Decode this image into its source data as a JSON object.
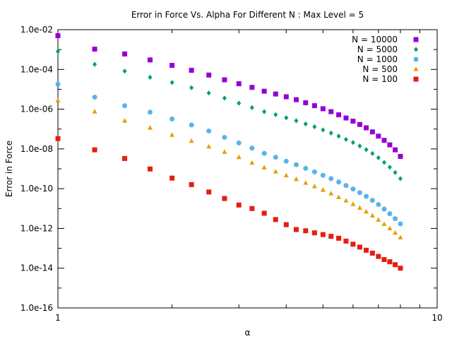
{
  "chart_data": {
    "type": "scatter",
    "title": "Error in Force Vs. Alpha For Different N : Max Level = 5",
    "xlabel": "α",
    "ylabel": "Error in Force",
    "xscale": "log",
    "yscale": "log",
    "xlim": [
      1,
      10
    ],
    "ylim": [
      1e-16,
      0.01
    ],
    "x_ticks": [
      {
        "value": 1,
        "label": "1"
      },
      {
        "value": 10,
        "label": "10"
      }
    ],
    "y_ticks": [
      {
        "value": 1e-16,
        "label": "1.0e-16"
      },
      {
        "value": 1e-14,
        "label": "1.0e-14"
      },
      {
        "value": 1e-12,
        "label": "1.0e-12"
      },
      {
        "value": 1e-10,
        "label": "1.0e-10"
      },
      {
        "value": 1e-08,
        "label": "1.0e-08"
      },
      {
        "value": 1e-06,
        "label": "1.0e-06"
      },
      {
        "value": 0.0001,
        "label": "1.0e-04"
      },
      {
        "value": 0.01,
        "label": "1.0e-02"
      }
    ],
    "legend_position": "top-right",
    "x": [
      1.0,
      1.25,
      1.5,
      1.75,
      2.0,
      2.25,
      2.5,
      2.75,
      3.0,
      3.25,
      3.5,
      3.75,
      4.0,
      4.25,
      4.5,
      4.75,
      5.0,
      5.25,
      5.5,
      5.75,
      6.0,
      6.25,
      6.5,
      6.75,
      7.0,
      7.25,
      7.5,
      7.75,
      8.0
    ],
    "series": [
      {
        "name": "N = 10000",
        "color": "#9400d3",
        "marker": "square",
        "values": [
          0.005,
          0.00105,
          0.0006,
          0.0003,
          0.00016,
          9e-05,
          5.2e-05,
          3e-05,
          1.9e-05,
          1.25e-05,
          8e-06,
          5.8e-06,
          4.2e-06,
          3e-06,
          2.1e-06,
          1.5e-06,
          1.05e-06,
          7.5e-07,
          5.2e-07,
          3.6e-07,
          2.5e-07,
          1.7e-07,
          1.15e-07,
          7.2e-08,
          4.4e-08,
          2.7e-08,
          1.6e-08,
          9e-09,
          4.2e-09
        ]
      },
      {
        "name": "N = 5000",
        "color": "#009e73",
        "marker": "diamond",
        "values": [
          0.0008,
          0.00018,
          8.2e-05,
          4e-05,
          2.2e-05,
          1.2e-05,
          6.5e-06,
          3.6e-06,
          2e-06,
          1.2e-06,
          7.5e-07,
          5.3e-07,
          3.7e-07,
          2.6e-07,
          1.8e-07,
          1.3e-07,
          9e-08,
          6.3e-08,
          4.4e-08,
          3e-08,
          2.1e-08,
          1.4e-08,
          9.2e-09,
          5.9e-09,
          3.6e-09,
          2.1e-09,
          1.2e-09,
          6.5e-10,
          3.2e-10
        ]
      },
      {
        "name": "N = 1000",
        "color": "#56b4e9",
        "marker": "circle",
        "values": [
          1.8e-05,
          4e-06,
          1.5e-06,
          7e-07,
          3.2e-07,
          1.6e-07,
          8e-08,
          3.8e-08,
          2e-08,
          1.1e-08,
          6e-09,
          3.8e-09,
          2.4e-09,
          1.6e-09,
          1.05e-09,
          7e-10,
          4.7e-10,
          3.2e-10,
          2.15e-10,
          1.45e-10,
          9.6e-11,
          6.3e-11,
          4.1e-11,
          2.6e-11,
          1.6e-11,
          9.4e-12,
          5.5e-12,
          3.1e-12,
          1.7e-12
        ]
      },
      {
        "name": "N = 500",
        "color": "#e69f00",
        "marker": "triangle",
        "values": [
          2.7e-06,
          7.5e-07,
          2.6e-07,
          1.15e-07,
          5e-08,
          2.5e-08,
          1.3e-08,
          7e-09,
          3.8e-09,
          2e-09,
          1.15e-09,
          7.2e-10,
          4.6e-10,
          3e-10,
          1.95e-10,
          1.3e-10,
          8.6e-11,
          5.7e-11,
          3.7e-11,
          2.5e-11,
          1.65e-11,
          1.08e-11,
          7e-12,
          4.4e-12,
          2.7e-12,
          1.65e-12,
          1e-12,
          6e-13,
          3.5e-13
        ]
      },
      {
        "name": "N = 100",
        "color": "#e51e10",
        "marker": "square",
        "values": [
          3.3e-08,
          9e-09,
          3.3e-09,
          9.8e-10,
          3.4e-10,
          1.6e-10,
          6.8e-11,
          3.2e-11,
          1.5e-11,
          1e-11,
          5.8e-12,
          2.8e-12,
          1.55e-12,
          8.8e-13,
          7.6e-13,
          6e-13,
          4.9e-13,
          4e-13,
          3.2e-13,
          2.3e-13,
          1.6e-13,
          1.15e-13,
          8e-14,
          5.7e-14,
          3.9e-14,
          2.7e-14,
          2.1e-14,
          1.5e-14,
          1e-14
        ]
      }
    ]
  }
}
